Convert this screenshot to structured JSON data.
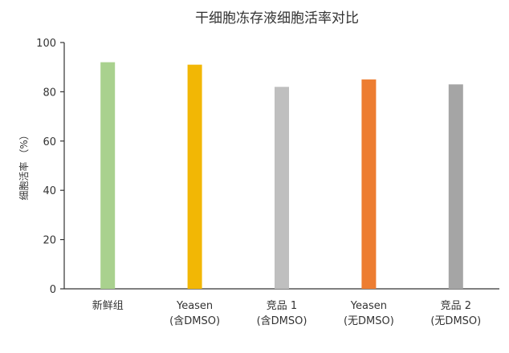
{
  "chart_data": {
    "type": "bar",
    "title": "干细胞冻存液细胞活率对比",
    "xlabel": "",
    "ylabel": "细胞活率 （%）",
    "ylim": [
      0,
      100
    ],
    "yticks": [
      0,
      20,
      40,
      60,
      80,
      100
    ],
    "grid": false,
    "legend": "none",
    "categories": [
      {
        "line1": "新鲜组",
        "line2": ""
      },
      {
        "line1": "Yeasen",
        "line2": "(含DMSO)"
      },
      {
        "line1": "竞品 1",
        "line2": "(含DMSO)"
      },
      {
        "line1": "Yeasen",
        "line2": "(无DMSO)"
      },
      {
        "line1": "竞品 2",
        "line2": "(无DMSO)"
      }
    ],
    "values": [
      92,
      91,
      82,
      85,
      83
    ],
    "colors": [
      "#a9d18e",
      "#f2b705",
      "#bfbfbf",
      "#ed7d31",
      "#a5a5a5"
    ]
  }
}
